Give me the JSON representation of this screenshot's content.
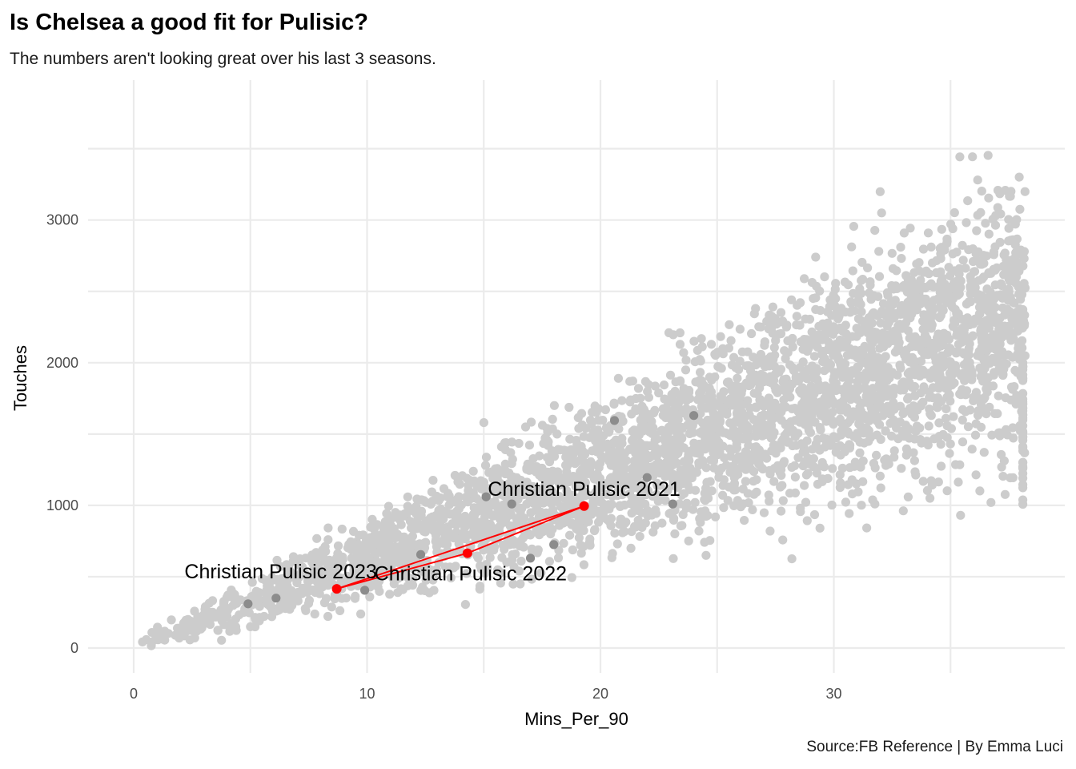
{
  "chart_data": {
    "type": "scatter",
    "title": "Is Chelsea a good fit for Pulisic?",
    "subtitle": "The numbers aren't looking great over his last 3 seasons.",
    "caption": "Source:FB Reference | By Emma Luci",
    "xlabel": "Mins_Per_90",
    "ylabel": "Touches",
    "xlim": [
      -2,
      39
    ],
    "ylim": [
      -150,
      3900
    ],
    "x_ticks": [
      0,
      10,
      20,
      30
    ],
    "y_ticks": [
      0,
      1000,
      2000,
      3000
    ],
    "grid": true,
    "legend": "none",
    "colors": {
      "background_points": "#cccccc",
      "dark_points": "#8c8c8c",
      "highlight": "#ff0000",
      "grid": "#ebebeb"
    },
    "dark_points": [
      {
        "x": 4.9,
        "y": 310
      },
      {
        "x": 6.1,
        "y": 350
      },
      {
        "x": 9.9,
        "y": 405
      },
      {
        "x": 12.3,
        "y": 655
      },
      {
        "x": 15.1,
        "y": 1060
      },
      {
        "x": 16.2,
        "y": 1010
      },
      {
        "x": 17.0,
        "y": 630
      },
      {
        "x": 18.0,
        "y": 725
      },
      {
        "x": 20.6,
        "y": 1595
      },
      {
        "x": 22.0,
        "y": 1195
      },
      {
        "x": 23.1,
        "y": 1010
      },
      {
        "x": 24.0,
        "y": 1630
      }
    ],
    "highlight_series": {
      "name": "Christian Pulisic",
      "points": [
        {
          "label": "Christian Pulisic 2021",
          "x": 19.3,
          "y": 995
        },
        {
          "label": "Christian Pulisic 2022",
          "x": 14.3,
          "y": 665
        },
        {
          "label": "Christian Pulisic 2023",
          "x": 8.7,
          "y": 415
        }
      ]
    }
  }
}
